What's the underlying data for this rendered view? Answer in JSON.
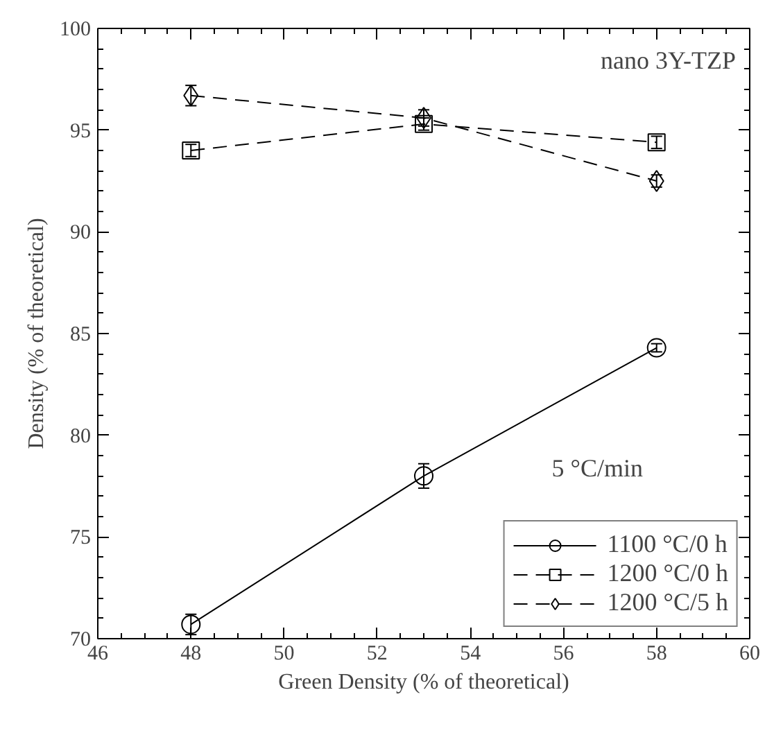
{
  "chart_data": {
    "type": "line",
    "xlabel": "Green Density (% of theoretical)",
    "ylabel": "Density (% of theoretical)",
    "x": [
      48,
      53,
      58
    ],
    "series": [
      {
        "name": "1100 °C/0 h",
        "color": "#000000",
        "values": [
          70.7,
          78.0,
          84.3
        ],
        "errors": [
          0.5,
          0.6,
          0.2
        ],
        "marker": "circle",
        "line_style": "solid"
      },
      {
        "name": "1200 °C/0 h",
        "color": "#000000",
        "values": [
          94.0,
          95.3,
          94.4
        ],
        "errors": [
          0.3,
          0.3,
          0.3
        ],
        "marker": "square",
        "line_style": "dashed"
      },
      {
        "name": "1200 °C/5 h",
        "color": "#000000",
        "values": [
          96.7,
          95.6,
          92.5
        ],
        "errors": [
          0.5,
          0.4,
          0.3
        ],
        "marker": "diamond",
        "line_style": "dashed"
      }
    ],
    "xlim": [
      46,
      60
    ],
    "xticks": [
      46,
      48,
      50,
      52,
      54,
      56,
      58,
      60
    ],
    "ylim": [
      70,
      100
    ],
    "yticks": [
      70,
      75,
      80,
      85,
      90,
      95,
      100
    ],
    "annotations": [
      "nano 3Y-TZP",
      "5 °C/min"
    ],
    "legend": "bottom right",
    "grid": false
  }
}
